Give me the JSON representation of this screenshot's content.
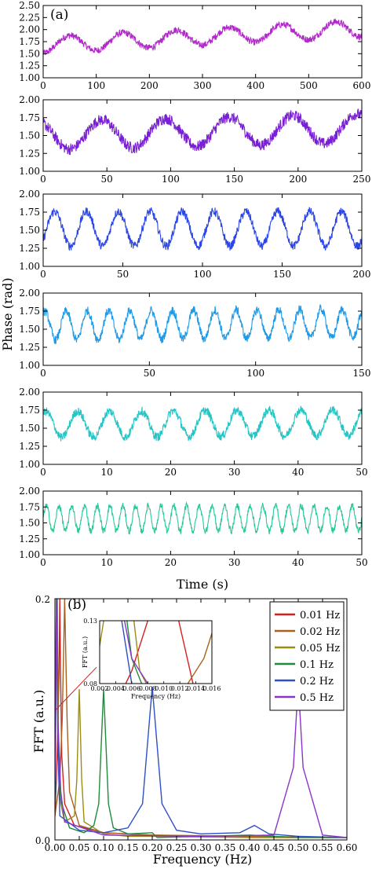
{
  "figure_labels": {
    "a": "(a)",
    "b": "(b)"
  },
  "chart_data": [
    {
      "type": "line",
      "panel": "(a)",
      "ylabel": "Phase (rad)",
      "xlabel": "Time (s)",
      "subplots": [
        {
          "color": "#b229c9",
          "xlim": [
            0,
            600
          ],
          "xticks": [
            0,
            100,
            200,
            300,
            400,
            500,
            600
          ],
          "xtick_labels": [
            "0",
            "100",
            "200",
            "300",
            "400",
            "500",
            "600"
          ],
          "ylim": [
            1.0,
            2.5
          ],
          "yticks": [
            1.0,
            1.25,
            1.5,
            1.75,
            2.0,
            2.25,
            2.5
          ],
          "ytick_labels": [
            "1.00",
            "1.25",
            "1.50",
            "1.75",
            "2.00",
            "2.25",
            "2.50"
          ],
          "period": 100,
          "mean_start": 1.68,
          "mean_end": 2.02,
          "amplitude": 0.17,
          "phase": -90,
          "noise": 0.07
        },
        {
          "color": "#7a1fd6",
          "xlim": [
            0,
            250
          ],
          "xticks": [
            0,
            50,
            100,
            150,
            200,
            250
          ],
          "xtick_labels": [
            "0",
            "50",
            "100",
            "150",
            "200",
            "250"
          ],
          "ylim": [
            1.0,
            2.0
          ],
          "yticks": [
            1.0,
            1.25,
            1.5,
            1.75,
            2.0
          ],
          "ytick_labels": [
            "1.00",
            "1.25",
            "1.50",
            "1.75",
            "2.00"
          ],
          "period": 50,
          "mean_start": 1.5,
          "mean_end": 1.6,
          "amplitude": 0.2,
          "phase": 120,
          "noise": 0.08
        },
        {
          "color": "#2a45e8",
          "xlim": [
            0,
            200
          ],
          "xticks": [
            0,
            50,
            100,
            150,
            200
          ],
          "xtick_labels": [
            "0",
            "50",
            "100",
            "150",
            "200"
          ],
          "ylim": [
            1.0,
            2.0
          ],
          "yticks": [
            1.0,
            1.25,
            1.5,
            1.75,
            2.0
          ],
          "ytick_labels": [
            "1.00",
            "1.25",
            "1.50",
            "1.75",
            "2.00"
          ],
          "period": 20,
          "mean_start": 1.52,
          "mean_end": 1.52,
          "amplitude": 0.24,
          "phase": -40,
          "noise": 0.06
        },
        {
          "color": "#1e9ae8",
          "xlim": [
            0,
            150
          ],
          "xticks": [
            0,
            50,
            100,
            150
          ],
          "xtick_labels": [
            "0",
            "50",
            "100",
            "150"
          ],
          "ylim": [
            1.0,
            2.0
          ],
          "yticks": [
            1.0,
            1.25,
            1.5,
            1.75,
            2.0
          ],
          "ytick_labels": [
            "1.00",
            "1.25",
            "1.50",
            "1.75",
            "2.00"
          ],
          "period": 10,
          "mean_start": 1.55,
          "mean_end": 1.58,
          "amplitude": 0.2,
          "phase": 60,
          "noise": 0.06
        },
        {
          "color": "#23c5c5",
          "xlim": [
            0,
            50
          ],
          "xticks": [
            0,
            10,
            20,
            30,
            40,
            50
          ],
          "xtick_labels": [
            "0",
            "10",
            "20",
            "30",
            "40",
            "50"
          ],
          "ylim": [
            1.0,
            2.0
          ],
          "yticks": [
            1.0,
            1.25,
            1.5,
            1.75,
            2.0
          ],
          "ytick_labels": [
            "1.00",
            "1.25",
            "1.50",
            "1.75",
            "2.00"
          ],
          "period": 5,
          "mean_start": 1.55,
          "mean_end": 1.58,
          "amplitude": 0.18,
          "phase": 60,
          "noise": 0.06
        },
        {
          "color": "#25c99a",
          "xlim": [
            0,
            50
          ],
          "xticks": [
            0,
            10,
            20,
            30,
            40,
            50
          ],
          "xtick_labels": [
            "0",
            "10",
            "20",
            "30",
            "40",
            "50"
          ],
          "ylim": [
            1.0,
            2.0
          ],
          "yticks": [
            1.0,
            1.25,
            1.5,
            1.75,
            2.0
          ],
          "ytick_labels": [
            "1.00",
            "1.25",
            "1.50",
            "1.75",
            "2.00"
          ],
          "period": 2,
          "mean_start": 1.57,
          "mean_end": 1.57,
          "amplitude": 0.2,
          "phase": 0,
          "noise": 0.05
        }
      ]
    },
    {
      "type": "line",
      "panel": "(b)",
      "xlabel": "Frequency (Hz)",
      "ylabel": "FFT (a.u.)",
      "xlim": [
        0,
        0.6
      ],
      "ylim": [
        0,
        0.2
      ],
      "xticks": [
        0,
        0.05,
        0.1,
        0.15,
        0.2,
        0.25,
        0.3,
        0.35,
        0.4,
        0.45,
        0.5,
        0.55,
        0.6
      ],
      "xtick_labels": [
        "0.00",
        "0.05",
        "0.10",
        "0.15",
        "0.20",
        "0.25",
        "0.30",
        "0.35",
        "0.40",
        "0.45",
        "0.50",
        "0.55",
        "0.60"
      ],
      "yticks": [
        0,
        0.2
      ],
      "ytick_labels": [
        "0.0",
        "0.2"
      ],
      "legend_position": "top-right",
      "series": [
        {
          "name": "0.01 Hz",
          "color": "#d42020",
          "points": [
            [
              0.0,
              0.02
            ],
            [
              0.003,
              0.05
            ],
            [
              0.006,
              0.09
            ],
            [
              0.0085,
              0.14
            ],
            [
              0.01,
              0.2
            ],
            [
              0.0115,
              0.14
            ],
            [
              0.014,
              0.07
            ],
            [
              0.02,
              0.03
            ],
            [
              0.04,
              0.012
            ],
            [
              0.1,
              0.006
            ],
            [
              0.2,
              0.004
            ],
            [
              0.4,
              0.002
            ],
            [
              0.6,
              0.002
            ]
          ]
        },
        {
          "name": "0.02 Hz",
          "color": "#a9601d",
          "points": [
            [
              0.0,
              0.02
            ],
            [
              0.01,
              0.05
            ],
            [
              0.015,
              0.1
            ],
            [
              0.02,
              0.2
            ],
            [
              0.025,
              0.1
            ],
            [
              0.03,
              0.04
            ],
            [
              0.05,
              0.012
            ],
            [
              0.1,
              0.006
            ],
            [
              0.2,
              0.004
            ],
            [
              0.4,
              0.003
            ],
            [
              0.6,
              0.002
            ]
          ]
        },
        {
          "name": "0.05 Hz",
          "color": "#9c8c14",
          "points": [
            [
              0.0,
              0.03
            ],
            [
              0.003,
              0.15
            ],
            [
              0.005,
              0.2
            ],
            [
              0.007,
              0.09
            ],
            [
              0.012,
              0.03
            ],
            [
              0.02,
              0.015
            ],
            [
              0.04,
              0.02
            ],
            [
              0.045,
              0.05
            ],
            [
              0.05,
              0.125
            ],
            [
              0.055,
              0.05
            ],
            [
              0.06,
              0.015
            ],
            [
              0.1,
              0.005
            ],
            [
              0.15,
              0.003
            ],
            [
              0.2,
              0.003
            ],
            [
              0.4,
              0.002
            ],
            [
              0.6,
              0.002
            ]
          ]
        },
        {
          "name": "0.1 Hz",
          "color": "#1e8c3c",
          "points": [
            [
              0.0,
              0.04
            ],
            [
              0.002,
              0.14
            ],
            [
              0.004,
              0.2
            ],
            [
              0.006,
              0.1
            ],
            [
              0.01,
              0.035
            ],
            [
              0.03,
              0.01
            ],
            [
              0.06,
              0.006
            ],
            [
              0.08,
              0.012
            ],
            [
              0.09,
              0.03
            ],
            [
              0.1,
              0.125
            ],
            [
              0.11,
              0.03
            ],
            [
              0.12,
              0.01
            ],
            [
              0.15,
              0.005
            ],
            [
              0.2,
              0.006
            ],
            [
              0.21,
              0.002
            ],
            [
              0.3,
              0.003
            ],
            [
              0.4,
              0.004
            ],
            [
              0.5,
              0.002
            ],
            [
              0.6,
              0.002
            ]
          ]
        },
        {
          "name": "0.2 Hz",
          "color": "#2e4fc6",
          "points": [
            [
              0.0,
              0.03
            ],
            [
              0.002,
              0.15
            ],
            [
              0.003,
              0.2
            ],
            [
              0.006,
              0.08
            ],
            [
              0.01,
              0.02
            ],
            [
              0.05,
              0.008
            ],
            [
              0.1,
              0.006
            ],
            [
              0.15,
              0.01
            ],
            [
              0.18,
              0.03
            ],
            [
              0.2,
              0.127
            ],
            [
              0.22,
              0.03
            ],
            [
              0.25,
              0.008
            ],
            [
              0.3,
              0.005
            ],
            [
              0.38,
              0.006
            ],
            [
              0.41,
              0.012
            ],
            [
              0.44,
              0.005
            ],
            [
              0.5,
              0.003
            ],
            [
              0.6,
              0.002
            ]
          ]
        },
        {
          "name": "0.5 Hz",
          "color": "#8a35c8",
          "points": [
            [
              0.0,
              0.05
            ],
            [
              0.003,
              0.2
            ],
            [
              0.006,
              0.1
            ],
            [
              0.012,
              0.04
            ],
            [
              0.02,
              0.015
            ],
            [
              0.1,
              0.004
            ],
            [
              0.3,
              0.003
            ],
            [
              0.45,
              0.004
            ],
            [
              0.49,
              0.06
            ],
            [
              0.5,
              0.13
            ],
            [
              0.51,
              0.06
            ],
            [
              0.55,
              0.004
            ],
            [
              0.6,
              0.002
            ]
          ]
        }
      ],
      "inset": {
        "xlim": [
          0.002,
          0.016
        ],
        "ylim": [
          0.08,
          0.13
        ],
        "xticks": [
          0.002,
          0.004,
          0.006,
          0.008,
          0.01,
          0.012,
          0.014,
          0.016
        ],
        "xtick_labels": [
          "0.002",
          "0.004",
          "0.006",
          "0.008",
          "0.010",
          "0.012",
          "0.014",
          "0.016"
        ],
        "yticks": [
          0.08,
          0.13
        ],
        "ytick_labels": [
          "0.08",
          "0.13"
        ],
        "xlabel": "Frequency (Hz)",
        "ylabel": "FFT (a.u.)"
      }
    }
  ]
}
